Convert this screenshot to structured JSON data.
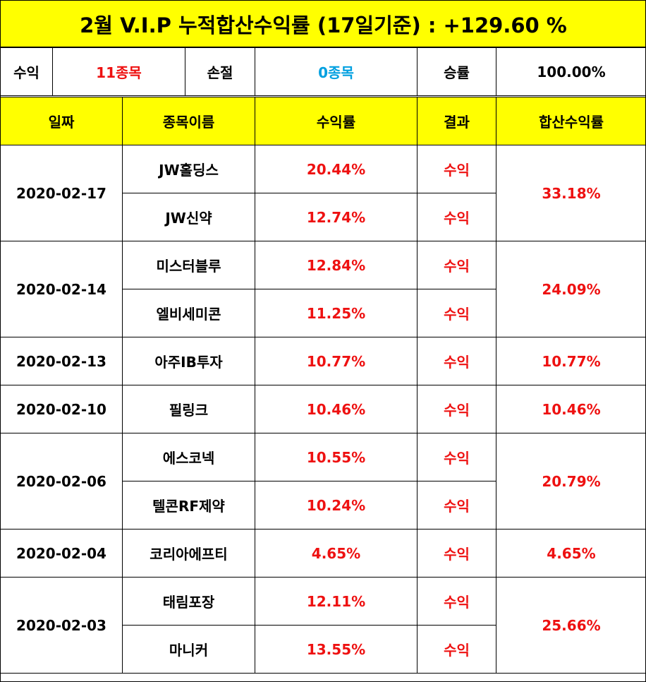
{
  "title": "2월 V.I.P 누적합산수익률 (17일기준) : +129.60 %",
  "summary": {
    "profit_label": "수익",
    "profit_value": "11종목",
    "loss_label": "손절",
    "loss_value": "0종목",
    "winrate_label": "승률",
    "winrate_value": "100.00%"
  },
  "headers": [
    "일짜",
    "종목이름",
    "수익률",
    "결과",
    "합산수익률"
  ],
  "groups": [
    {
      "date": "2020-02-17",
      "total": "33.18%",
      "rows": [
        {
          "name": "JW홀딩스",
          "rate": "20.44%",
          "result": "수익"
        },
        {
          "name": "JW신약",
          "rate": "12.74%",
          "result": "수익"
        }
      ]
    },
    {
      "date": "2020-02-14",
      "total": "24.09%",
      "rows": [
        {
          "name": "미스터블루",
          "rate": "12.84%",
          "result": "수익"
        },
        {
          "name": "엘비세미콘",
          "rate": "11.25%",
          "result": "수익"
        }
      ]
    },
    {
      "date": "2020-02-13",
      "total": "10.77%",
      "rows": [
        {
          "name": "아주IB투자",
          "rate": "10.77%",
          "result": "수익"
        }
      ]
    },
    {
      "date": "2020-02-10",
      "total": "10.46%",
      "rows": [
        {
          "name": "필링크",
          "rate": "10.46%",
          "result": "수익"
        }
      ]
    },
    {
      "date": "2020-02-06",
      "total": "20.79%",
      "rows": [
        {
          "name": "에스코넥",
          "rate": "10.55%",
          "result": "수익"
        },
        {
          "name": "텔콘RF제약",
          "rate": "10.24%",
          "result": "수익"
        }
      ]
    },
    {
      "date": "2020-02-04",
      "total": "4.65%",
      "rows": [
        {
          "name": "코리아에프티",
          "rate": "4.65%",
          "result": "수익"
        }
      ]
    },
    {
      "date": "2020-02-03",
      "total": "25.66%",
      "rows": [
        {
          "name": "태림포장",
          "rate": "12.11%",
          "result": "수익"
        },
        {
          "name": "마니커",
          "rate": "13.55%",
          "result": "수익"
        }
      ]
    }
  ],
  "colors": {
    "header_bg": "#ffff00",
    "profit_red": "#ee1111",
    "loss_cyan": "#00a0e0"
  }
}
